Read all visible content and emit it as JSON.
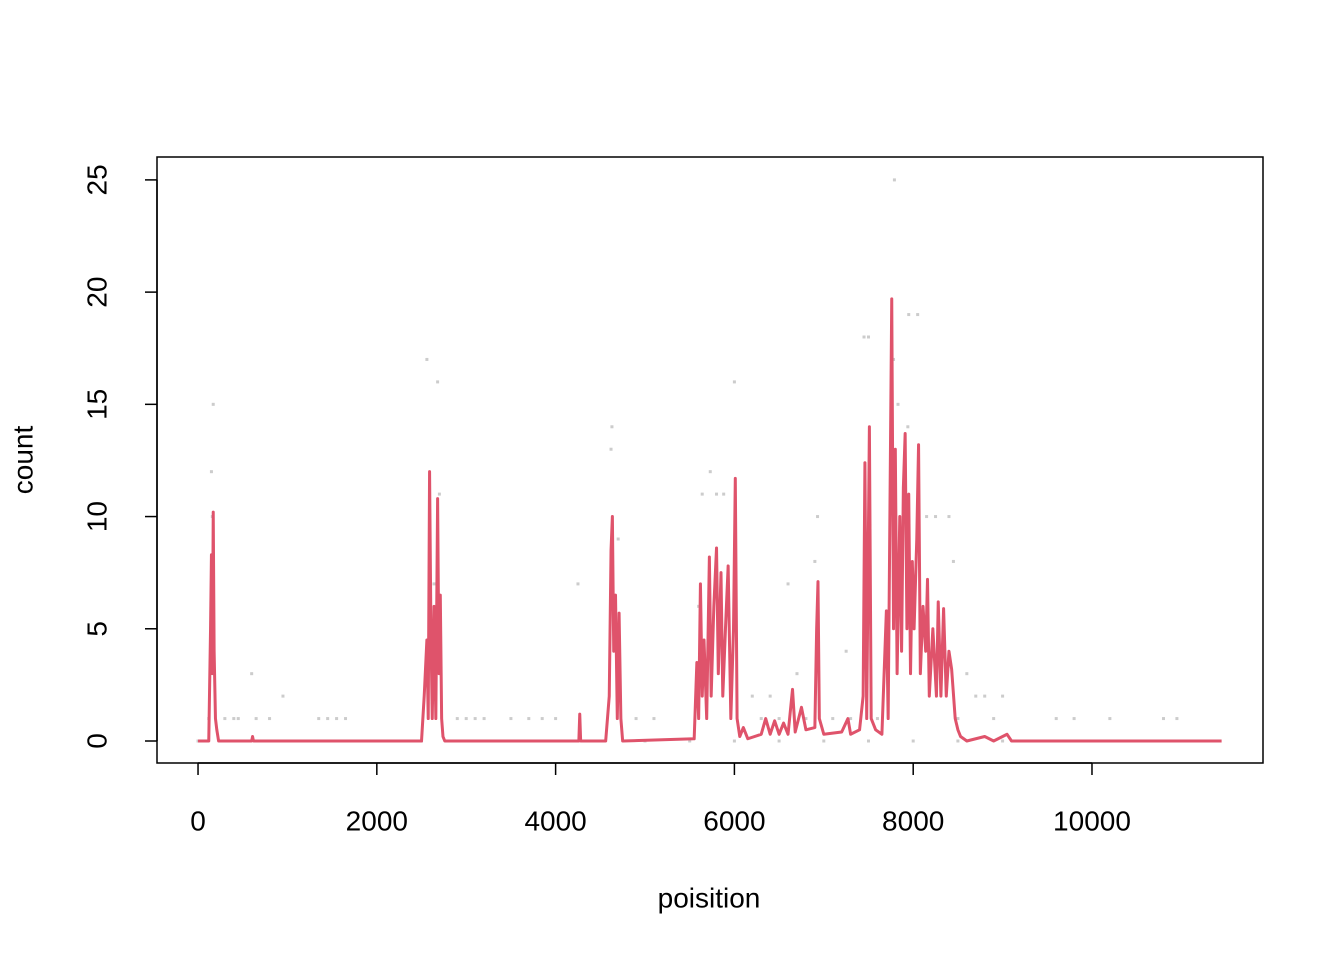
{
  "chart_data": {
    "type": "line",
    "x_label": "poisition",
    "y_label": "count",
    "xlim": [
      -459,
      11913
    ],
    "ylim": [
      -0.98,
      26.02
    ],
    "xticks": [
      0,
      2000,
      4000,
      6000,
      8000,
      10000
    ],
    "yticks": [
      0,
      5,
      10,
      15,
      20,
      25
    ],
    "series": [
      {
        "style": "points",
        "color": "#cccccc",
        "x": [
          150,
          170,
          160,
          120,
          300,
          400,
          450,
          600,
          650,
          800,
          950,
          1350,
          1450,
          1550,
          1650,
          2560,
          2600,
          2680,
          2700,
          2640,
          2900,
          3000,
          3100,
          3200,
          3500,
          3700,
          3850,
          4000,
          4250,
          4630,
          4620,
          4700,
          4900,
          5100,
          5600,
          5640,
          5730,
          5800,
          5880,
          6000,
          6200,
          6400,
          6600,
          6700,
          6930,
          6900,
          7250,
          7450,
          7500,
          7790,
          7780,
          7830,
          7950,
          8050,
          7940,
          8150,
          8250,
          8400,
          8450,
          8600,
          8700,
          8800,
          9000,
          9600,
          9800,
          10200,
          10800,
          10950,
          6300,
          6500,
          6800,
          7100,
          7300,
          7600,
          8500,
          8900,
          0,
          500,
          1000,
          1500,
          2000,
          2500,
          3000,
          3500,
          4000,
          4500,
          5000,
          5500,
          6000,
          6500,
          7000,
          7500,
          8000,
          8500,
          9000
        ],
        "values": [
          12,
          15,
          10,
          1,
          1,
          1,
          1,
          3,
          1,
          1,
          2,
          1,
          1,
          1,
          1,
          17,
          6,
          16,
          11,
          7,
          1,
          1,
          1,
          1,
          1,
          1,
          1,
          1,
          7,
          14,
          13,
          9,
          1,
          1,
          6,
          11,
          12,
          11,
          11,
          16,
          2,
          2,
          7,
          3,
          10,
          8,
          4,
          18,
          18,
          25,
          17,
          15,
          19,
          19,
          14,
          10,
          10,
          10,
          8,
          3,
          2,
          2,
          2,
          1,
          1,
          1,
          1,
          1,
          1,
          1,
          1,
          1,
          1,
          1,
          1,
          1,
          0,
          0,
          0,
          0,
          0,
          0,
          0,
          0,
          0,
          0,
          0,
          0,
          0,
          0,
          0,
          0,
          0,
          0,
          0
        ]
      },
      {
        "style": "line",
        "color": "#df536b",
        "x": [
          0,
          120,
          140,
          150,
          160,
          170,
          180,
          195,
          210,
          230,
          600,
          610,
          620,
          2500,
          2530,
          2560,
          2575,
          2590,
          2605,
          2620,
          2640,
          2660,
          2680,
          2695,
          2710,
          2725,
          2740,
          2760,
          4260,
          4270,
          4280,
          4560,
          4600,
          4620,
          4635,
          4650,
          4670,
          4690,
          4710,
          4730,
          4750,
          5550,
          5580,
          5600,
          5620,
          5640,
          5660,
          5690,
          5720,
          5740,
          5770,
          5800,
          5820,
          5850,
          5870,
          5900,
          5930,
          5960,
          5990,
          6010,
          6030,
          6060,
          6100,
          6150,
          6300,
          6350,
          6400,
          6450,
          6500,
          6550,
          6600,
          6650,
          6680,
          6750,
          6800,
          6900,
          6920,
          6935,
          6950,
          7000,
          7200,
          7270,
          7300,
          7400,
          7440,
          7460,
          7480,
          7510,
          7530,
          7580,
          7650,
          7700,
          7720,
          7760,
          7780,
          7800,
          7820,
          7850,
          7870,
          7890,
          7910,
          7930,
          7950,
          7970,
          7990,
          8010,
          8040,
          8060,
          8080,
          8110,
          8140,
          8160,
          8180,
          8220,
          8260,
          8280,
          8310,
          8340,
          8370,
          8400,
          8430,
          8470,
          8500,
          8530,
          8600,
          8800,
          8900,
          9050,
          9100,
          11450
        ],
        "values": [
          0,
          0,
          5,
          8.3,
          3,
          10.2,
          4,
          1,
          0.5,
          0,
          0,
          0.2,
          0,
          0,
          2,
          4.5,
          1,
          12,
          5,
          1,
          6,
          1,
          10.8,
          3,
          6.5,
          1,
          0.2,
          0,
          0,
          1.2,
          0,
          0,
          2,
          8.5,
          10,
          4,
          6.5,
          1,
          5.7,
          1,
          0,
          0.1,
          3.5,
          1,
          7,
          2,
          4.5,
          1,
          8.2,
          2,
          6,
          8.6,
          3,
          7.5,
          2,
          5,
          7.8,
          1,
          5,
          11.7,
          1,
          0.2,
          0.6,
          0.1,
          0.3,
          1,
          0.3,
          0.9,
          0.3,
          0.8,
          0.3,
          2.3,
          0.4,
          1.5,
          0.5,
          0.6,
          5,
          7.1,
          1,
          0.3,
          0.4,
          1,
          0.3,
          0.5,
          2,
          12.4,
          1,
          14,
          1,
          0.5,
          0.3,
          5.8,
          1,
          19.7,
          5,
          13,
          3,
          10,
          4,
          11.3,
          13.7,
          5,
          11,
          3,
          8,
          5,
          9,
          13.2,
          3,
          6,
          4,
          7.2,
          2,
          5,
          2,
          6.2,
          2,
          5.9,
          2,
          4,
          3.2,
          1,
          0.5,
          0.2,
          0,
          0.2,
          0,
          0.3,
          0,
          0
        ]
      }
    ]
  }
}
